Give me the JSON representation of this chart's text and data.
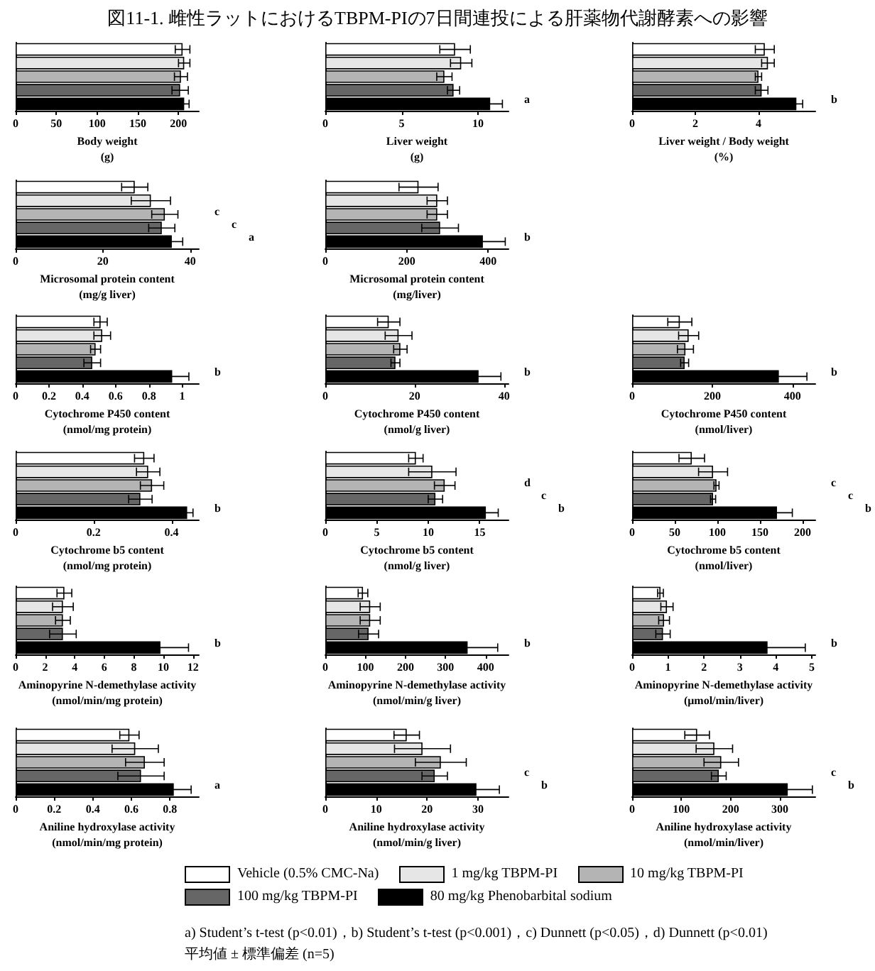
{
  "chart_data": [
    {
      "type": "bar",
      "orientation": "horizontal",
      "title": "図11-1. 雌性ラットにおけるTBPM-PIの7日間連投による肝薬物代謝酵素への影響",
      "legend": "bottom",
      "xlabel": "Body weight\n(g)",
      "categories": [
        null
      ],
      "xlim": [
        0,
        225
      ],
      "xticks": [
        0,
        50,
        100,
        150,
        200
      ],
      "series": [
        {
          "name": "Vehicle (0.5% CMC-Na)",
          "color": "#ffffff",
          "values": [
            205
          ],
          "errors": [
            9
          ]
        },
        {
          "name": "1 mg/kg TBPM-PI",
          "color": "#e6e6e6",
          "values": [
            207
          ],
          "errors": [
            7
          ]
        },
        {
          "name": "10 mg/kg TBPM-PI",
          "color": "#b4b4b4",
          "values": [
            203
          ],
          "errors": [
            8
          ]
        },
        {
          "name": "100 mg/kg TBPM-PI",
          "color": "#666666",
          "values": [
            202
          ],
          "errors": [
            10
          ]
        },
        {
          "name": "80 mg/kg Phenobarbital sodium",
          "color": "#000000",
          "values": [
            207
          ],
          "errors": [
            6
          ]
        }
      ]
    },
    {
      "type": "bar",
      "orientation": "horizontal",
      "xlabel": "Liver weight\n(g)",
      "categories": [
        null
      ],
      "xlim": [
        0,
        12
      ],
      "xticks": [
        0,
        5,
        10
      ],
      "annotations": [
        "a"
      ],
      "series": [
        {
          "color": "#ffffff",
          "values": [
            8.5
          ],
          "errors": [
            1.0
          ]
        },
        {
          "color": "#e6e6e6",
          "values": [
            8.9
          ],
          "errors": [
            0.7
          ]
        },
        {
          "color": "#b4b4b4",
          "values": [
            7.8
          ],
          "errors": [
            0.5
          ]
        },
        {
          "color": "#666666",
          "values": [
            8.4
          ],
          "errors": [
            0.4
          ]
        },
        {
          "color": "#000000",
          "values": [
            10.8
          ],
          "errors": [
            0.8
          ]
        }
      ]
    },
    {
      "type": "bar",
      "orientation": "horizontal",
      "xlabel": "Liver weight / Body weight\n(%)",
      "categories": [
        null
      ],
      "xlim": [
        0,
        5.8
      ],
      "xticks": [
        0,
        2,
        4
      ],
      "annotations": [
        "b"
      ],
      "series": [
        {
          "color": "#ffffff",
          "values": [
            4.2
          ],
          "errors": [
            0.3
          ]
        },
        {
          "color": "#e6e6e6",
          "values": [
            4.3
          ],
          "errors": [
            0.2
          ]
        },
        {
          "color": "#b4b4b4",
          "values": [
            4.0
          ],
          "errors": [
            0.1
          ]
        },
        {
          "color": "#666666",
          "values": [
            4.1
          ],
          "errors": [
            0.2
          ]
        },
        {
          "color": "#000000",
          "values": [
            5.2
          ],
          "errors": [
            0.2
          ]
        }
      ]
    },
    {
      "type": "bar",
      "orientation": "horizontal",
      "xlabel": "Microsomal protein content\n(mg/g liver)",
      "categories": [
        null
      ],
      "xlim": [
        0,
        42
      ],
      "xticks": [
        0,
        20,
        40
      ],
      "annotations": [
        "c",
        "c",
        "a"
      ],
      "series": [
        {
          "color": "#ffffff",
          "values": [
            27.3
          ],
          "errors": [
            3
          ]
        },
        {
          "color": "#e6e6e6",
          "values": [
            31
          ],
          "errors": [
            4.5
          ]
        },
        {
          "color": "#b4b4b4",
          "values": [
            34.2
          ],
          "errors": [
            3
          ]
        },
        {
          "color": "#666666",
          "values": [
            33.5
          ],
          "errors": [
            3
          ]
        },
        {
          "color": "#000000",
          "values": [
            35.8
          ],
          "errors": [
            2.5
          ]
        }
      ]
    },
    {
      "type": "bar",
      "orientation": "horizontal",
      "xlabel": "Microsomal protein content\n(mg/liver)",
      "categories": [
        null
      ],
      "xlim": [
        0,
        450
      ],
      "xticks": [
        0,
        200,
        400
      ],
      "annotations": [
        "b"
      ],
      "series": [
        {
          "color": "#ffffff",
          "values": [
            229
          ],
          "errors": [
            48
          ]
        },
        {
          "color": "#e6e6e6",
          "values": [
            275
          ],
          "errors": [
            25
          ]
        },
        {
          "color": "#b4b4b4",
          "values": [
            275
          ],
          "errors": [
            25
          ]
        },
        {
          "color": "#666666",
          "values": [
            282
          ],
          "errors": [
            45
          ]
        },
        {
          "color": "#000000",
          "values": [
            387
          ],
          "errors": [
            55
          ]
        }
      ]
    },
    {
      "type": "bar",
      "orientation": "horizontal",
      "xlabel": "Cytochrome P450 content\n(nmol/mg protein)",
      "categories": [
        null
      ],
      "xlim": [
        0,
        1.1
      ],
      "xticks": [
        0,
        0.2,
        0.4,
        0.6,
        0.8,
        1
      ],
      "annotations": [
        "b"
      ],
      "series": [
        {
          "color": "#ffffff",
          "values": [
            0.51
          ],
          "errors": [
            0.04
          ]
        },
        {
          "color": "#e6e6e6",
          "values": [
            0.52
          ],
          "errors": [
            0.05
          ]
        },
        {
          "color": "#b4b4b4",
          "values": [
            0.48
          ],
          "errors": [
            0.03
          ]
        },
        {
          "color": "#666666",
          "values": [
            0.46
          ],
          "errors": [
            0.05
          ]
        },
        {
          "color": "#000000",
          "values": [
            0.94
          ],
          "errors": [
            0.1
          ]
        }
      ]
    },
    {
      "type": "bar",
      "orientation": "horizontal",
      "xlabel": "Cytochrome P450 content\n(nmol/g liver)",
      "categories": [
        null
      ],
      "xlim": [
        0,
        41
      ],
      "xticks": [
        0,
        20,
        40
      ],
      "annotations": [
        "b"
      ],
      "series": [
        {
          "color": "#ffffff",
          "values": [
            14.2
          ],
          "errors": [
            2.5
          ]
        },
        {
          "color": "#e6e6e6",
          "values": [
            16.4
          ],
          "errors": [
            3
          ]
        },
        {
          "color": "#b4b4b4",
          "values": [
            16.8
          ],
          "errors": [
            1.5
          ]
        },
        {
          "color": "#666666",
          "values": [
            15.7
          ],
          "errors": [
            1
          ]
        },
        {
          "color": "#000000",
          "values": [
            34.3
          ],
          "errors": [
            5
          ]
        }
      ]
    },
    {
      "type": "bar",
      "orientation": "horizontal",
      "xlabel": "Cytochrome P450 content\n(nmol/liver)",
      "categories": [
        null
      ],
      "xlim": [
        0,
        457
      ],
      "xticks": [
        0,
        200,
        400
      ],
      "annotations": [
        "b"
      ],
      "series": [
        {
          "color": "#ffffff",
          "values": [
            119
          ],
          "errors": [
            30
          ]
        },
        {
          "color": "#e6e6e6",
          "values": [
            141
          ],
          "errors": [
            25
          ]
        },
        {
          "color": "#b4b4b4",
          "values": [
            133
          ],
          "errors": [
            20
          ]
        },
        {
          "color": "#666666",
          "values": [
            131
          ],
          "errors": [
            10
          ]
        },
        {
          "color": "#000000",
          "values": [
            366
          ],
          "errors": [
            70
          ]
        }
      ]
    },
    {
      "type": "bar",
      "orientation": "horizontal",
      "xlabel": "Cytochrome b5 content\n(nmol/mg protein)",
      "categories": [
        null
      ],
      "xlim": [
        0,
        0.47
      ],
      "xticks": [
        0,
        0.2,
        0.4
      ],
      "annotations": [
        "b"
      ],
      "series": [
        {
          "color": "#ffffff",
          "values": [
            0.33
          ],
          "errors": [
            0.025
          ]
        },
        {
          "color": "#e6e6e6",
          "values": [
            0.34
          ],
          "errors": [
            0.03
          ]
        },
        {
          "color": "#b4b4b4",
          "values": [
            0.35
          ],
          "errors": [
            0.03
          ]
        },
        {
          "color": "#666666",
          "values": [
            0.32
          ],
          "errors": [
            0.03
          ]
        },
        {
          "color": "#000000",
          "values": [
            0.44
          ],
          "errors": [
            0.015
          ]
        }
      ]
    },
    {
      "type": "bar",
      "orientation": "horizontal",
      "xlabel": "Cytochrome b5 content\n(nmol/g liver)",
      "categories": [
        null
      ],
      "xlim": [
        0,
        17.8
      ],
      "xticks": [
        0,
        5,
        10,
        15
      ],
      "annotations": [
        "d",
        "c",
        "b"
      ],
      "series": [
        {
          "color": "#ffffff",
          "values": [
            8.8
          ],
          "errors": [
            0.7
          ]
        },
        {
          "color": "#e6e6e6",
          "values": [
            10.4
          ],
          "errors": [
            2.3
          ]
        },
        {
          "color": "#b4b4b4",
          "values": [
            11.6
          ],
          "errors": [
            1.0
          ]
        },
        {
          "color": "#666666",
          "values": [
            10.7
          ],
          "errors": [
            0.7
          ]
        },
        {
          "color": "#000000",
          "values": [
            15.6
          ],
          "errors": [
            1.2
          ]
        }
      ]
    },
    {
      "type": "bar",
      "orientation": "horizontal",
      "xlabel": "Cytochrome b5 content\n(nmol/liver)",
      "categories": [
        null
      ],
      "xlim": [
        0,
        215
      ],
      "xticks": [
        0,
        50,
        100,
        150,
        200
      ],
      "annotations": [
        "c",
        "c",
        "b"
      ],
      "series": [
        {
          "color": "#ffffff",
          "values": [
            70
          ],
          "errors": [
            15
          ]
        },
        {
          "color": "#e6e6e6",
          "values": [
            95
          ],
          "errors": [
            17
          ]
        },
        {
          "color": "#b4b4b4",
          "values": [
            99
          ],
          "errors": [
            3
          ]
        },
        {
          "color": "#666666",
          "values": [
            95
          ],
          "errors": [
            3
          ]
        },
        {
          "color": "#000000",
          "values": [
            170
          ],
          "errors": [
            18
          ]
        }
      ]
    },
    {
      "type": "bar",
      "orientation": "horizontal",
      "xlabel": "Aminopyrine N-demethylase activity\n(nmol/min/mg protein)",
      "categories": [
        null
      ],
      "xlim": [
        0,
        12.4
      ],
      "xticks": [
        0,
        2,
        4,
        6,
        8,
        10,
        12
      ],
      "annotations": [
        "b"
      ],
      "series": [
        {
          "color": "#ffffff",
          "values": [
            3.3
          ],
          "errors": [
            0.5
          ]
        },
        {
          "color": "#e6e6e6",
          "values": [
            3.2
          ],
          "errors": [
            0.7
          ]
        },
        {
          "color": "#b4b4b4",
          "values": [
            3.2
          ],
          "errors": [
            0.5
          ]
        },
        {
          "color": "#666666",
          "values": [
            3.2
          ],
          "errors": [
            0.9
          ]
        },
        {
          "color": "#000000",
          "values": [
            9.8
          ],
          "errors": [
            1.9
          ]
        }
      ]
    },
    {
      "type": "bar",
      "orientation": "horizontal",
      "xlabel": "Aminopyrine N-demethylase activity\n(nmol/min/g liver)",
      "categories": [
        null
      ],
      "xlim": [
        0,
        457
      ],
      "xticks": [
        0,
        100,
        200,
        300,
        400
      ],
      "annotations": [
        "b"
      ],
      "series": [
        {
          "color": "#ffffff",
          "values": [
            94
          ],
          "errors": [
            12
          ]
        },
        {
          "color": "#e6e6e6",
          "values": [
            112
          ],
          "errors": [
            25
          ]
        },
        {
          "color": "#b4b4b4",
          "values": [
            112
          ],
          "errors": [
            25
          ]
        },
        {
          "color": "#666666",
          "values": [
            108
          ],
          "errors": [
            25
          ]
        },
        {
          "color": "#000000",
          "values": [
            355
          ],
          "errors": [
            75
          ]
        }
      ]
    },
    {
      "type": "bar",
      "orientation": "horizontal",
      "xlabel": "Aminopyrine N-demethylase activity\n(μmol/min/liver)",
      "categories": [
        null
      ],
      "xlim": [
        0,
        5.1
      ],
      "xticks": [
        0,
        1,
        2,
        3,
        4,
        5
      ],
      "annotations": [
        "b"
      ],
      "series": [
        {
          "color": "#ffffff",
          "values": [
            0.79
          ],
          "errors": [
            0.08
          ]
        },
        {
          "color": "#e6e6e6",
          "values": [
            0.97
          ],
          "errors": [
            0.17
          ]
        },
        {
          "color": "#b4b4b4",
          "values": [
            0.89
          ],
          "errors": [
            0.15
          ]
        },
        {
          "color": "#666666",
          "values": [
            0.86
          ],
          "errors": [
            0.2
          ]
        },
        {
          "color": "#000000",
          "values": [
            3.77
          ],
          "errors": [
            1.05
          ]
        }
      ]
    },
    {
      "type": "bar",
      "orientation": "horizontal",
      "xlabel": "Aniline hydroxylase activity\n(nmol/min/mg protein)",
      "categories": [
        null
      ],
      "xlim": [
        0,
        0.95
      ],
      "xticks": [
        0,
        0.2,
        0.4,
        0.6,
        0.8
      ],
      "annotations": [
        "a"
      ],
      "series": [
        {
          "color": "#ffffff",
          "values": [
            0.59
          ],
          "errors": [
            0.05
          ]
        },
        {
          "color": "#e6e6e6",
          "values": [
            0.62
          ],
          "errors": [
            0.12
          ]
        },
        {
          "color": "#b4b4b4",
          "values": [
            0.67
          ],
          "errors": [
            0.1
          ]
        },
        {
          "color": "#666666",
          "values": [
            0.65
          ],
          "errors": [
            0.12
          ]
        },
        {
          "color": "#000000",
          "values": [
            0.82
          ],
          "errors": [
            0.09
          ]
        }
      ]
    },
    {
      "type": "bar",
      "orientation": "horizontal",
      "xlabel": "Aniline hydroxylase activity\n(nmol/min/g liver)",
      "categories": [
        null
      ],
      "xlim": [
        0,
        36
      ],
      "xticks": [
        0,
        10,
        20,
        30
      ],
      "annotations": [
        "c",
        "b"
      ],
      "series": [
        {
          "color": "#ffffff",
          "values": [
            16
          ],
          "errors": [
            2.5
          ]
        },
        {
          "color": "#e6e6e6",
          "values": [
            19.1
          ],
          "errors": [
            5.5
          ]
        },
        {
          "color": "#b4b4b4",
          "values": [
            22.7
          ],
          "errors": [
            5
          ]
        },
        {
          "color": "#666666",
          "values": [
            21.5
          ],
          "errors": [
            2.5
          ]
        },
        {
          "color": "#000000",
          "values": [
            29.7
          ],
          "errors": [
            4.5
          ]
        }
      ]
    },
    {
      "type": "bar",
      "orientation": "horizontal",
      "xlabel": "Aniline hydroxylase activity\n(nmol/min/liver)",
      "categories": [
        null
      ],
      "xlim": [
        0,
        372
      ],
      "xticks": [
        0,
        100,
        200,
        300
      ],
      "annotations": [
        "c",
        "b"
      ],
      "series": [
        {
          "color": "#ffffff",
          "values": [
            132
          ],
          "errors": [
            25
          ]
        },
        {
          "color": "#e6e6e6",
          "values": [
            167
          ],
          "errors": [
            37
          ]
        },
        {
          "color": "#b4b4b4",
          "values": [
            181
          ],
          "errors": [
            35
          ]
        },
        {
          "color": "#666666",
          "values": [
            176
          ],
          "errors": [
            15
          ]
        },
        {
          "color": "#000000",
          "values": [
            316
          ],
          "errors": [
            50
          ]
        }
      ]
    },
    {
      "type": "other",
      "annotations": [
        "a) Student’s t-test (p<0.01)，b) Student’s t-test (p<0.001)，c) Dunnett (p<0.05)，d) Dunnett (p<0.01)",
        "平均値 ± 標準偏差 (n=5)"
      ]
    }
  ]
}
